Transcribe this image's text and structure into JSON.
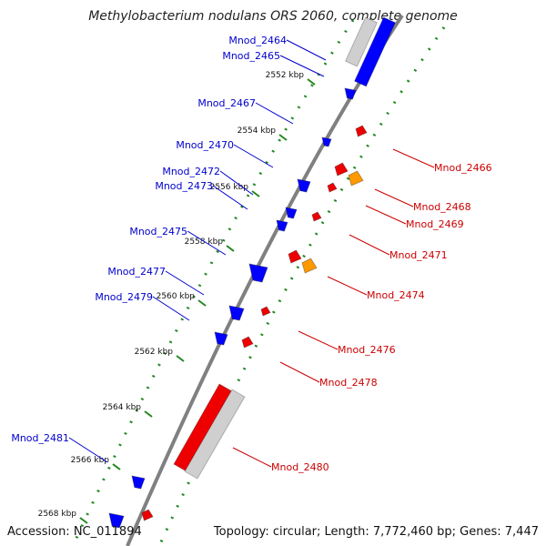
{
  "title": "Methylobacterium nodulans ORS 2060, complete genome",
  "footer": {
    "accession": "Accession: NC_011894",
    "summary": "Topology: circular; Length: 7,772,460 bp; Genes: 7,447"
  },
  "colors": {
    "forward_label": "#0000cc",
    "reverse_label": "#cc0000",
    "forward_gene": "#0000ff",
    "reverse_gene": "#ee0000",
    "orange_gene": "#ff9900",
    "rna_gene": "#cfcfcf",
    "backbone": "#808080",
    "tick": "#228822"
  },
  "ticks": [
    {
      "label": "2552 kbp"
    },
    {
      "label": "2554 kbp"
    },
    {
      "label": "2556 kbp"
    },
    {
      "label": "2558 kbp"
    },
    {
      "label": "2560 kbp"
    },
    {
      "label": "2562 kbp"
    },
    {
      "label": "2564 kbp"
    },
    {
      "label": "2566 kbp"
    },
    {
      "label": "2568 kbp"
    }
  ],
  "forward_labels": [
    {
      "name": "Mnod_2464"
    },
    {
      "name": "Mnod_2465"
    },
    {
      "name": "Mnod_2467"
    },
    {
      "name": "Mnod_2470"
    },
    {
      "name": "Mnod_2472"
    },
    {
      "name": "Mnod_2473"
    },
    {
      "name": "Mnod_2475"
    },
    {
      "name": "Mnod_2477"
    },
    {
      "name": "Mnod_2479"
    },
    {
      "name": "Mnod_2481"
    }
  ],
  "reverse_labels": [
    {
      "name": "Mnod_2466"
    },
    {
      "name": "Mnod_2468"
    },
    {
      "name": "Mnod_2469"
    },
    {
      "name": "Mnod_2471"
    },
    {
      "name": "Mnod_2474"
    },
    {
      "name": "Mnod_2476"
    },
    {
      "name": "Mnod_2478"
    },
    {
      "name": "Mnod_2480"
    }
  ]
}
